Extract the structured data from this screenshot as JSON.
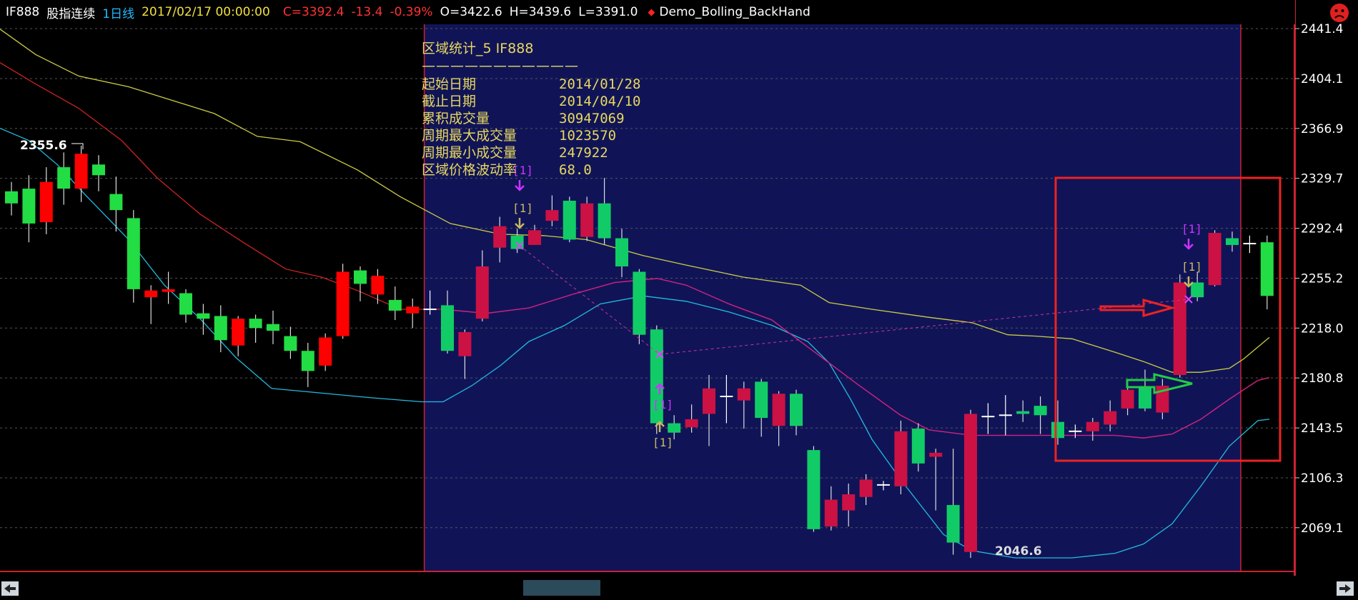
{
  "header": {
    "symbol": "IF888",
    "name": "股指连续",
    "period": "1日线",
    "datetime": "2017/02/17 00:00:00",
    "close": "C=3392.4",
    "change": "-13.4",
    "change_pct": "-0.39%",
    "open": "O=3422.6",
    "high": "H=3439.6",
    "low": "L=3391.0",
    "strategy": "Demo_Bolling_BackHand"
  },
  "axis": {
    "labels": [
      "2441.4",
      "2404.1",
      "2366.9",
      "2329.7",
      "2292.4",
      "2255.2",
      "2218.0",
      "2180.8",
      "2143.5",
      "2106.3",
      "2069.1"
    ]
  },
  "stats": {
    "title": "区域统计_5  IF888",
    "divider": "———————————",
    "rows": [
      {
        "k": "起始日期",
        "v": "2014/01/28"
      },
      {
        "k": "截止日期",
        "v": "2014/04/10"
      },
      {
        "k": "累积成交量",
        "v": "30947069"
      },
      {
        "k": "周期最大成交量",
        "v": "1023570"
      },
      {
        "k": "周期最小成交量",
        "v": "247922"
      },
      {
        "k": "区域价格波动率",
        "v": "68.0"
      }
    ]
  },
  "annotations": {
    "high_label": "2355.6",
    "low_label": "2046.6",
    "signal": "[1]"
  },
  "colors": {
    "up": "#ff0000",
    "down": "#22dd44",
    "up_dark": "#cc1144",
    "down_dark": "#11cc66",
    "mid_line": "#cccc44",
    "upper_line": "#cc2222",
    "lower_line": "#22bbdd",
    "region": "#101457"
  },
  "chart_data": {
    "type": "candlestick",
    "ylim": [
      2046.6,
      2441.4
    ],
    "y_ticks": [
      2441.4,
      2404.1,
      2366.9,
      2329.7,
      2292.4,
      2255.2,
      2218.0,
      2180.8,
      2143.5,
      2106.3,
      2069.1
    ],
    "candles": [
      {
        "o": 2320,
        "c": 2311,
        "h": 2327,
        "l": 2302
      },
      {
        "o": 2322,
        "c": 2296,
        "h": 2332,
        "l": 2282
      },
      {
        "o": 2297,
        "c": 2327,
        "h": 2338,
        "l": 2288
      },
      {
        "o": 2338,
        "c": 2322,
        "h": 2349,
        "l": 2310
      },
      {
        "o": 2322,
        "c": 2348,
        "h": 2354,
        "l": 2312
      },
      {
        "o": 2340,
        "c": 2332,
        "h": 2347,
        "l": 2320
      },
      {
        "o": 2318,
        "c": 2306,
        "h": 2331,
        "l": 2290
      },
      {
        "o": 2300,
        "c": 2247,
        "h": 2306,
        "l": 2237
      },
      {
        "o": 2241,
        "c": 2246,
        "h": 2250,
        "l": 2221
      },
      {
        "o": 2245,
        "c": 2247,
        "h": 2260,
        "l": 2236
      },
      {
        "o": 2244,
        "c": 2228,
        "h": 2247,
        "l": 2222
      },
      {
        "o": 2229,
        "c": 2225,
        "h": 2236,
        "l": 2213
      },
      {
        "o": 2227,
        "c": 2209,
        "h": 2235,
        "l": 2200
      },
      {
        "o": 2205,
        "c": 2225,
        "h": 2227,
        "l": 2197
      },
      {
        "o": 2225,
        "c": 2218,
        "h": 2228,
        "l": 2207
      },
      {
        "o": 2221,
        "c": 2216,
        "h": 2231,
        "l": 2206
      },
      {
        "o": 2212,
        "c": 2201,
        "h": 2219,
        "l": 2195
      },
      {
        "o": 2201,
        "c": 2186,
        "h": 2207,
        "l": 2174
      },
      {
        "o": 2190,
        "c": 2211,
        "h": 2214,
        "l": 2186
      },
      {
        "o": 2212,
        "c": 2260,
        "h": 2266,
        "l": 2210
      },
      {
        "o": 2261,
        "c": 2251,
        "h": 2264,
        "l": 2238
      },
      {
        "o": 2243,
        "c": 2257,
        "h": 2262,
        "l": 2236
      },
      {
        "o": 2239,
        "c": 2231,
        "h": 2249,
        "l": 2224
      },
      {
        "o": 2229,
        "c": 2234,
        "h": 2240,
        "l": 2218
      },
      {
        "o": 2232,
        "c": 2232,
        "h": 2246,
        "l": 2228
      },
      {
        "o": 2235,
        "c": 2201,
        "h": 2246,
        "l": 2199
      },
      {
        "o": 2197,
        "c": 2215,
        "h": 2217,
        "l": 2180
      },
      {
        "o": 2225,
        "c": 2264,
        "h": 2276,
        "l": 2223
      },
      {
        "o": 2278,
        "c": 2294,
        "h": 2301,
        "l": 2267
      },
      {
        "o": 2287,
        "c": 2277,
        "h": 2292,
        "l": 2274
      },
      {
        "o": 2280,
        "c": 2291,
        "h": 2295,
        "l": 2280
      },
      {
        "o": 2298,
        "c": 2306,
        "h": 2317,
        "l": 2294
      },
      {
        "o": 2313,
        "c": 2284,
        "h": 2316,
        "l": 2282
      },
      {
        "o": 2286,
        "c": 2311,
        "h": 2316,
        "l": 2283
      },
      {
        "o": 2311,
        "c": 2285,
        "h": 2330,
        "l": 2280
      },
      {
        "o": 2285,
        "c": 2264,
        "h": 2292,
        "l": 2256
      },
      {
        "o": 2260,
        "c": 2213,
        "h": 2262,
        "l": 2206
      },
      {
        "o": 2217,
        "c": 2147,
        "h": 2220,
        "l": 2139
      },
      {
        "o": 2147,
        "c": 2140,
        "h": 2153,
        "l": 2135
      },
      {
        "o": 2144,
        "c": 2150,
        "h": 2161,
        "l": 2140
      },
      {
        "o": 2154,
        "c": 2173,
        "h": 2183,
        "l": 2130
      },
      {
        "o": 2166,
        "c": 2167,
        "h": 2183,
        "l": 2147
      },
      {
        "o": 2164,
        "c": 2173,
        "h": 2178,
        "l": 2143
      },
      {
        "o": 2178,
        "c": 2151,
        "h": 2180,
        "l": 2137
      },
      {
        "o": 2145,
        "c": 2169,
        "h": 2171,
        "l": 2130
      },
      {
        "o": 2169,
        "c": 2145,
        "h": 2172,
        "l": 2138
      },
      {
        "o": 2127,
        "c": 2068,
        "h": 2130,
        "l": 2066
      },
      {
        "o": 2070,
        "c": 2090,
        "h": 2100,
        "l": 2067
      },
      {
        "o": 2082,
        "c": 2094,
        "h": 2102,
        "l": 2070
      },
      {
        "o": 2092,
        "c": 2105,
        "h": 2109,
        "l": 2086
      },
      {
        "o": 2101,
        "c": 2101,
        "h": 2104,
        "l": 2097
      },
      {
        "o": 2100,
        "c": 2141,
        "h": 2149,
        "l": 2094
      },
      {
        "o": 2143,
        "c": 2117,
        "h": 2147,
        "l": 2111
      },
      {
        "o": 2122,
        "c": 2125,
        "h": 2128,
        "l": 2082
      },
      {
        "o": 2086,
        "c": 2058,
        "h": 2128,
        "l": 2049
      },
      {
        "o": 2051,
        "c": 2154,
        "h": 2157,
        "l": 2046.6
      },
      {
        "o": 2152,
        "c": 2152,
        "h": 2162,
        "l": 2139
      },
      {
        "o": 2153,
        "c": 2153,
        "h": 2168,
        "l": 2138
      },
      {
        "o": 2156,
        "c": 2154,
        "h": 2164,
        "l": 2148
      },
      {
        "o": 2160,
        "c": 2153,
        "h": 2167,
        "l": 2139
      },
      {
        "o": 2148,
        "c": 2136,
        "h": 2164,
        "l": 2131
      },
      {
        "o": 2141,
        "c": 2141,
        "h": 2146,
        "l": 2136
      },
      {
        "o": 2141,
        "c": 2148,
        "h": 2151,
        "l": 2134
      },
      {
        "o": 2146,
        "c": 2156,
        "h": 2164,
        "l": 2141
      },
      {
        "o": 2158,
        "c": 2172,
        "h": 2176,
        "l": 2153
      },
      {
        "o": 2174,
        "c": 2158,
        "h": 2187,
        "l": 2156
      },
      {
        "o": 2155,
        "c": 2175,
        "h": 2180,
        "l": 2150
      },
      {
        "o": 2183,
        "c": 2252,
        "h": 2258,
        "l": 2181
      },
      {
        "o": 2252,
        "c": 2241,
        "h": 2260,
        "l": 2238
      },
      {
        "o": 2250,
        "c": 2289,
        "h": 2291,
        "l": 2249
      },
      {
        "o": 2285,
        "c": 2280,
        "h": 2290,
        "l": 2275
      },
      {
        "o": 2281,
        "c": 2281,
        "h": 2287,
        "l": 2274
      },
      {
        "o": 2282,
        "c": 2242,
        "h": 2287,
        "l": 2232
      }
    ],
    "mid_band": [
      [
        0,
        2441
      ],
      [
        50,
        2422
      ],
      [
        110,
        2406
      ],
      [
        180,
        2398
      ],
      [
        240,
        2388
      ],
      [
        300,
        2378
      ],
      [
        360,
        2361
      ],
      [
        420,
        2357
      ],
      [
        500,
        2336
      ],
      [
        560,
        2316
      ],
      [
        630,
        2296
      ],
      [
        700,
        2288
      ],
      [
        760,
        2287
      ],
      [
        820,
        2284
      ],
      [
        900,
        2272
      ],
      [
        960,
        2265
      ],
      [
        1040,
        2256
      ],
      [
        1120,
        2250
      ],
      [
        1160,
        2237
      ],
      [
        1220,
        2232
      ],
      [
        1300,
        2226
      ],
      [
        1360,
        2222
      ],
      [
        1410,
        2213
      ],
      [
        1450,
        2212
      ],
      [
        1500,
        2210
      ],
      [
        1560,
        2200
      ],
      [
        1600,
        2193
      ],
      [
        1640,
        2185
      ],
      [
        1680,
        2185
      ],
      [
        1720,
        2188
      ],
      [
        1740,
        2195
      ],
      [
        1776,
        2211
      ]
    ],
    "upper_band": [
      [
        0,
        2416
      ],
      [
        50,
        2400
      ],
      [
        110,
        2382
      ],
      [
        170,
        2358
      ],
      [
        220,
        2330
      ],
      [
        280,
        2303
      ],
      [
        340,
        2282
      ],
      [
        400,
        2262
      ],
      [
        450,
        2256
      ],
      [
        500,
        2246
      ],
      [
        560,
        2232
      ],
      [
        620,
        2232
      ],
      [
        680,
        2229
      ],
      [
        740,
        2233
      ],
      [
        800,
        2243
      ],
      [
        860,
        2252
      ],
      [
        920,
        2255
      ],
      [
        960,
        2250
      ],
      [
        1020,
        2236
      ],
      [
        1080,
        2224
      ],
      [
        1140,
        2200
      ],
      [
        1200,
        2176
      ],
      [
        1260,
        2153
      ],
      [
        1300,
        2142
      ],
      [
        1360,
        2138
      ],
      [
        1430,
        2138
      ],
      [
        1500,
        2138
      ],
      [
        1560,
        2138
      ],
      [
        1600,
        2136
      ],
      [
        1640,
        2139
      ],
      [
        1680,
        2150
      ],
      [
        1720,
        2165
      ],
      [
        1760,
        2179
      ],
      [
        1776,
        2181
      ]
    ],
    "lower_band": [
      [
        0,
        2367
      ],
      [
        40,
        2358
      ],
      [
        80,
        2340
      ],
      [
        120,
        2317
      ],
      [
        180,
        2284
      ],
      [
        230,
        2250
      ],
      [
        280,
        2225
      ],
      [
        330,
        2196
      ],
      [
        380,
        2173
      ],
      [
        440,
        2170
      ],
      [
        520,
        2166
      ],
      [
        590,
        2163
      ],
      [
        620,
        2163
      ],
      [
        660,
        2175
      ],
      [
        700,
        2190
      ],
      [
        740,
        2208
      ],
      [
        790,
        2220
      ],
      [
        840,
        2236
      ],
      [
        900,
        2242
      ],
      [
        960,
        2238
      ],
      [
        1020,
        2230
      ],
      [
        1080,
        2220
      ],
      [
        1130,
        2208
      ],
      [
        1160,
        2192
      ],
      [
        1190,
        2165
      ],
      [
        1220,
        2135
      ],
      [
        1260,
        2105
      ],
      [
        1320,
        2064
      ],
      [
        1360,
        2052
      ],
      [
        1420,
        2046.6
      ],
      [
        1500,
        2046.6
      ],
      [
        1560,
        2050
      ],
      [
        1600,
        2057
      ],
      [
        1640,
        2072
      ],
      [
        1680,
        2100
      ],
      [
        1720,
        2130
      ],
      [
        1760,
        2149
      ],
      [
        1776,
        2150
      ]
    ],
    "region": {
      "start_index": 24,
      "end_index": 70,
      "start_date": "2014/01/28",
      "end_date": "2014/04/10"
    }
  }
}
